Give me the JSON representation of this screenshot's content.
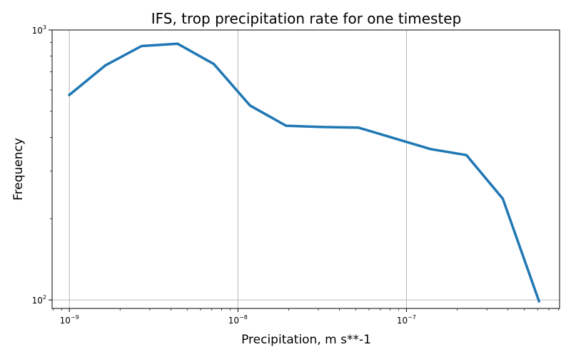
{
  "chart_data": {
    "type": "line",
    "title": "IFS, trop precipitation rate for one timestep",
    "xlabel": "Precipitation, m s**-1",
    "ylabel": "Frequency",
    "xscale": "log",
    "yscale": "log",
    "xlim": [
      7.9e-10,
      8.1e-07
    ],
    "ylim": [
      93,
      1000
    ],
    "grid": true,
    "x_ticks": [
      {
        "value": 1e-09,
        "base": "10",
        "exp": "−9"
      },
      {
        "value": 1e-08,
        "base": "10",
        "exp": "−8"
      },
      {
        "value": 1e-07,
        "base": "10",
        "exp": "−7"
      }
    ],
    "y_ticks": [
      {
        "value": 100,
        "base": "10",
        "exp": "2"
      },
      {
        "value": 1000,
        "base": "10",
        "exp": "3"
      }
    ],
    "series": [
      {
        "color": "#1f77b4",
        "x": [
          1e-09,
          1.64e-09,
          2.68e-09,
          4.39e-09,
          7.2e-09,
          1.18e-08,
          1.93e-08,
          3.16e-08,
          5.18e-08,
          1.39e-07,
          2.27e-07,
          3.73e-07,
          6.11e-07
        ],
        "y": [
          575,
          740,
          872,
          889,
          748,
          525,
          442,
          437,
          435,
          362,
          344,
          237,
          99
        ]
      }
    ]
  }
}
